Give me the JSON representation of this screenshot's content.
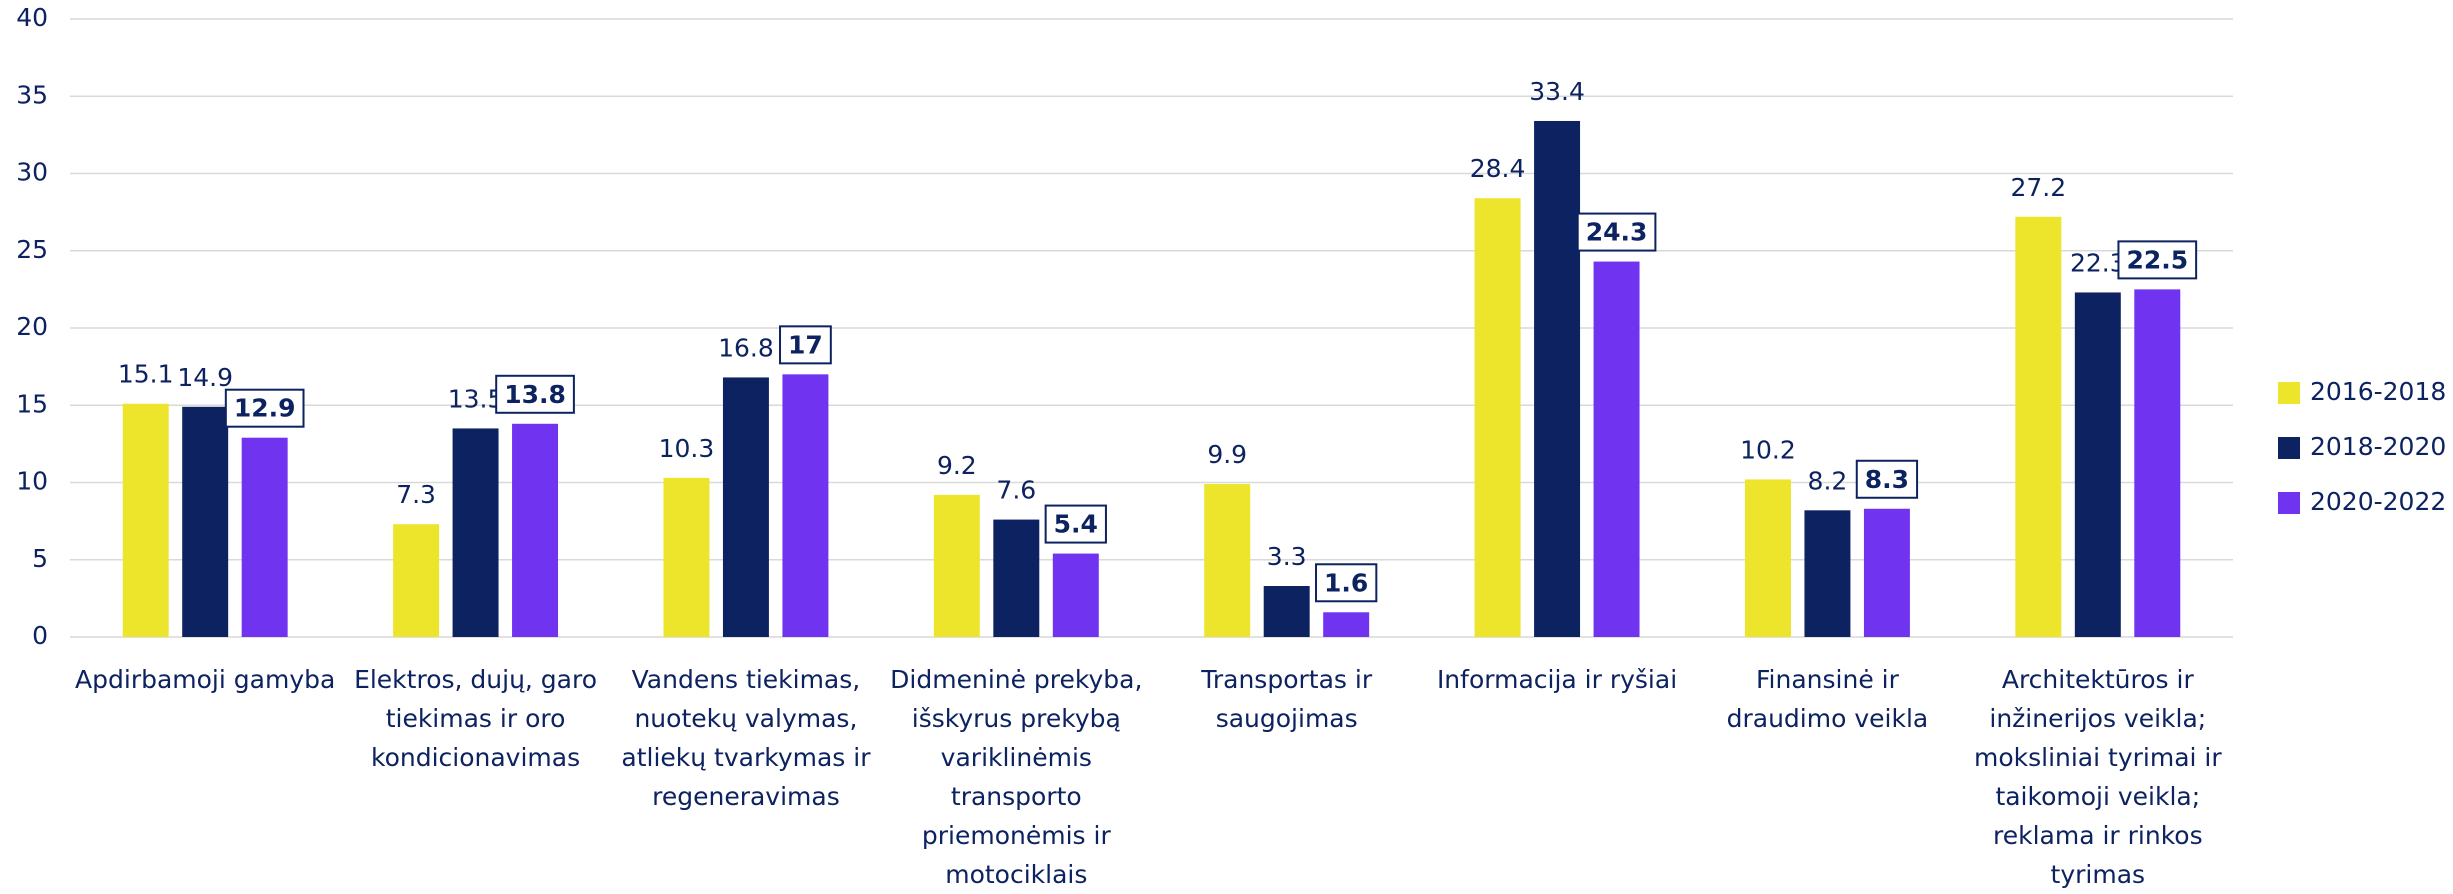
{
  "chart_data": {
    "type": "bar",
    "categories": [
      "Apdirbamoji gamyba",
      "Elektros, dujų, garo tiekimas ir oro kondicionavimas",
      "Vandens tiekimas, nuotekų valymas, atliekų tvarkymas ir regeneravimas",
      "Didmeninė prekyba, išskyrus prekybą variklinėmis transporto priemonėmis ir motociklais",
      "Transportas ir saugojimas",
      "Informacija ir ryšiai",
      "Finansinė ir draudimo veikla",
      "Architektūros ir inžinerijos veikla; moksliniai tyrimai ir taikomoji veikla; reklama ir rinkos tyrimas"
    ],
    "series": [
      {
        "name": "2016-2018",
        "color": "#ece52c",
        "values": [
          15.1,
          7.3,
          10.3,
          9.2,
          9.9,
          28.4,
          10.2,
          27.2
        ]
      },
      {
        "name": "2018-2020",
        "color": "#0d2260",
        "values": [
          14.9,
          13.5,
          16.8,
          7.6,
          3.3,
          33.4,
          8.2,
          22.3
        ]
      },
      {
        "name": "2020-2022",
        "color": "#7033f0",
        "values": [
          12.9,
          13.8,
          17,
          5.4,
          1.6,
          24.3,
          8.3,
          22.5
        ]
      }
    ],
    "ylim": [
      0,
      40
    ],
    "yticks": [
      0,
      5,
      10,
      15,
      20,
      25,
      30,
      35,
      40
    ],
    "grid": true,
    "legend": "right"
  }
}
